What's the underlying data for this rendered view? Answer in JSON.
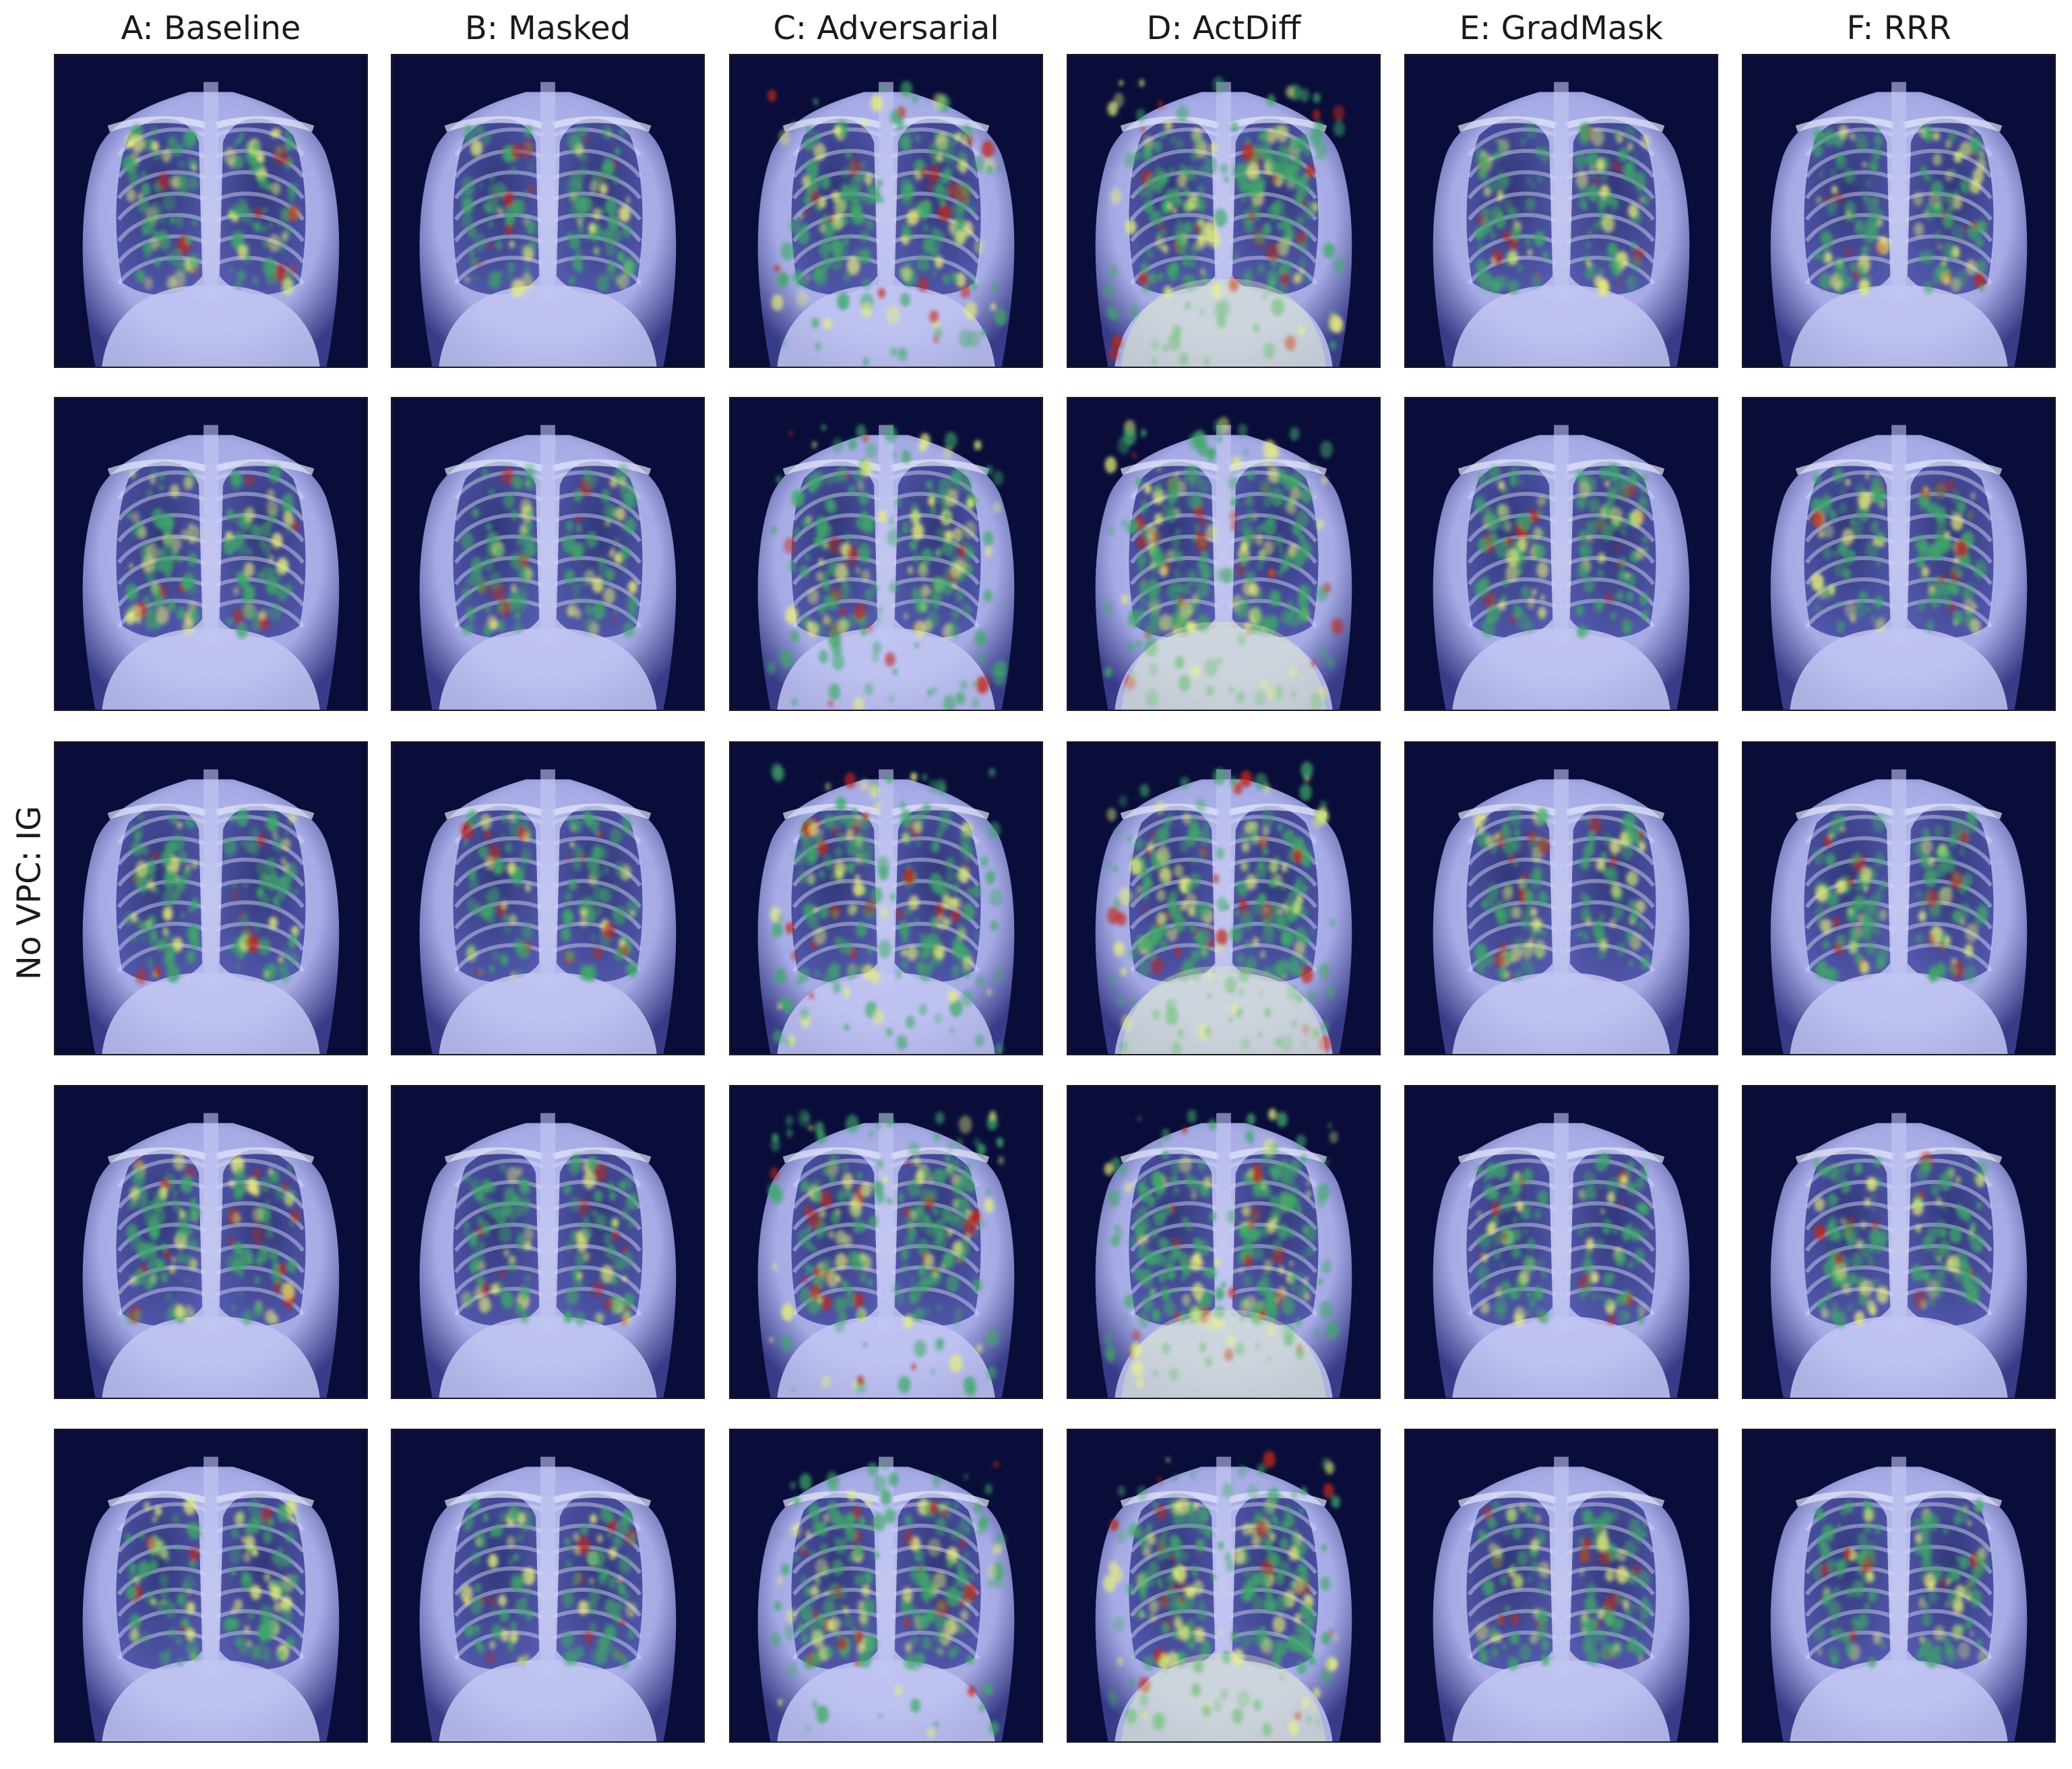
{
  "figure": {
    "row_label": "No VPC: IG",
    "columns": [
      {
        "id": "A",
        "title": "A: Baseline",
        "method": "baseline",
        "heat": 0.3
      },
      {
        "id": "B",
        "title": "B: Masked",
        "method": "masked",
        "heat": 0.25
      },
      {
        "id": "C",
        "title": "C: Adversarial",
        "method": "adversarial",
        "heat": 0.65
      },
      {
        "id": "D",
        "title": "D: ActDiff",
        "method": "actdiff",
        "heat": 0.8
      },
      {
        "id": "E",
        "title": "E: GradMask",
        "method": "gradmask",
        "heat": 0.3
      },
      {
        "id": "F",
        "title": "F: RRR",
        "method": "rrr",
        "heat": 0.3
      }
    ],
    "rows": 5,
    "colors": {
      "overlay_dark": "#0a0d3a",
      "xray_tint": "#aeb3ee",
      "heat_green": "#3fa86a",
      "heat_yellow": "#e9f27a",
      "heat_red": "#c0261a"
    }
  }
}
